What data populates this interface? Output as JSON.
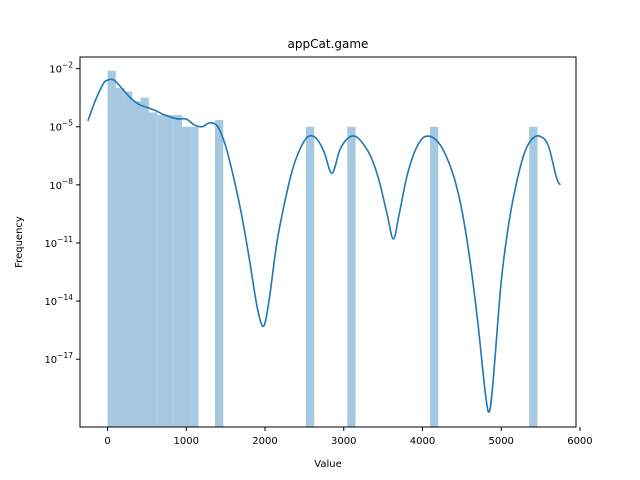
{
  "chart_data": {
    "type": "bar",
    "title": "appCat.game",
    "xlabel": "Value",
    "ylabel": "Frequency",
    "xlim": [
      -350,
      5950
    ],
    "ylim_log10": [
      -20.5,
      -1.4
    ],
    "yscale": "log",
    "grid": false,
    "x_ticks": [
      0,
      1000,
      2000,
      3000,
      4000,
      5000,
      6000
    ],
    "x_tick_labels": [
      "0",
      "1000",
      "2000",
      "3000",
      "4000",
      "5000",
      "6000"
    ],
    "y_tick_exponents": [
      -2,
      -5,
      -8,
      -11,
      -14,
      -17
    ],
    "y_tick_labels": [
      {
        "base": "10",
        "exp": "−2"
      },
      {
        "base": "10",
        "exp": "−5"
      },
      {
        "base": "10",
        "exp": "−8"
      },
      {
        "base": "10",
        "exp": "−11"
      },
      {
        "base": "10",
        "exp": "−14"
      },
      {
        "base": "10",
        "exp": "−17"
      }
    ],
    "bar_color": "#a6c8e0",
    "line_color": "#1f77b4",
    "histogram": {
      "bins": [
        {
          "x0": 0,
          "x1": 105,
          "value": 0.0078
        },
        {
          "x0": 105,
          "x1": 210,
          "value": 0.001
        },
        {
          "x0": 210,
          "x1": 315,
          "value": 0.00065
        },
        {
          "x0": 315,
          "x1": 420,
          "value": 0.00021
        },
        {
          "x0": 420,
          "x1": 525,
          "value": 0.00032
        },
        {
          "x0": 525,
          "x1": 630,
          "value": 5.5e-05
        },
        {
          "x0": 630,
          "x1": 735,
          "value": 4e-05
        },
        {
          "x0": 735,
          "x1": 840,
          "value": 4e-05
        },
        {
          "x0": 840,
          "x1": 945,
          "value": 4e-05
        },
        {
          "x0": 945,
          "x1": 1050,
          "value": 1e-05
        },
        {
          "x0": 1050,
          "x1": 1155,
          "value": 1e-05
        },
        {
          "x0": 1155,
          "x1": 1260,
          "value": 0
        },
        {
          "x0": 1260,
          "x1": 1365,
          "value": 0
        },
        {
          "x0": 1365,
          "x1": 1470,
          "value": 2.2e-05
        },
        {
          "x0": 2520,
          "x1": 2625,
          "value": 1e-05
        },
        {
          "x0": 3045,
          "x1": 3150,
          "value": 1e-05
        },
        {
          "x0": 4095,
          "x1": 4200,
          "value": 1e-05
        },
        {
          "x0": 5355,
          "x1": 5460,
          "value": 1e-05
        }
      ]
    },
    "kde": {
      "x": [
        -250,
        -150,
        -50,
        0,
        50,
        100,
        200,
        300,
        400,
        500,
        600,
        700,
        800,
        900,
        1000,
        1100,
        1200,
        1300,
        1400,
        1500,
        1600,
        1700,
        1800,
        1900,
        1980,
        2050,
        2150,
        2250,
        2350,
        2450,
        2550,
        2650,
        2750,
        2850,
        2950,
        3050,
        3150,
        3250,
        3350,
        3450,
        3550,
        3630,
        3700,
        3800,
        3900,
        4000,
        4100,
        4200,
        4300,
        4400,
        4500,
        4600,
        4700,
        4800,
        4850,
        4900,
        5000,
        5100,
        5200,
        5300,
        5400,
        5500,
        5600,
        5700,
        5750
      ],
      "log10_y": [
        -4.7,
        -3.6,
        -2.75,
        -2.6,
        -2.55,
        -2.65,
        -3.1,
        -3.55,
        -3.85,
        -4.0,
        -4.15,
        -4.35,
        -4.5,
        -4.6,
        -4.6,
        -4.9,
        -5.0,
        -4.8,
        -5.0,
        -6.0,
        -7.6,
        -9.5,
        -11.8,
        -14.3,
        -15.3,
        -14.0,
        -11.0,
        -8.9,
        -7.2,
        -6.1,
        -5.5,
        -5.6,
        -6.3,
        -7.4,
        -6.2,
        -5.6,
        -5.5,
        -5.9,
        -6.6,
        -7.8,
        -9.5,
        -10.8,
        -9.6,
        -7.6,
        -6.3,
        -5.6,
        -5.5,
        -5.8,
        -6.5,
        -7.6,
        -9.3,
        -11.8,
        -15.0,
        -18.8,
        -19.7,
        -18.0,
        -13.0,
        -9.9,
        -7.8,
        -6.3,
        -5.6,
        -5.5,
        -6.0,
        -7.6,
        -8.0
      ]
    }
  }
}
